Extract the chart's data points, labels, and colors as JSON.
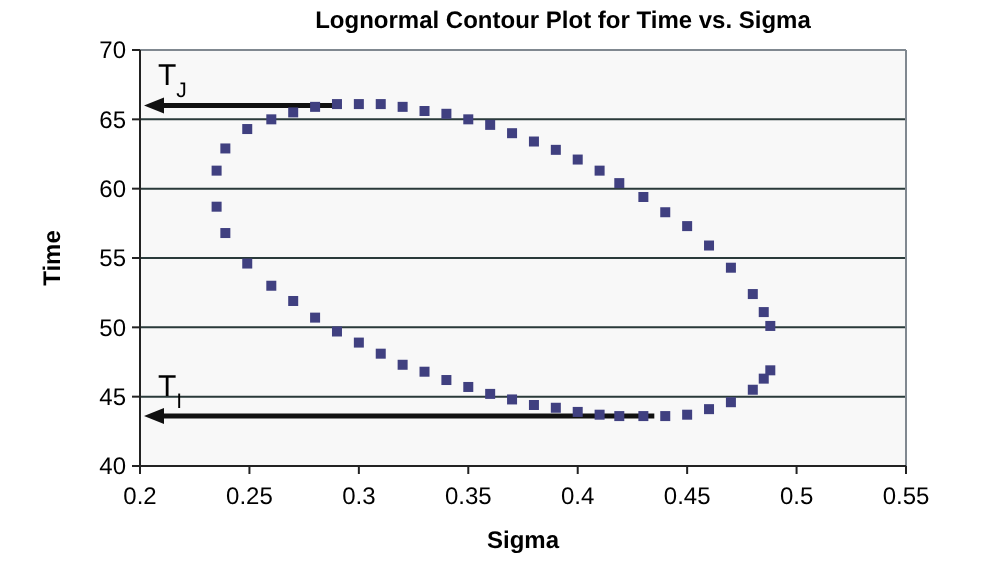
{
  "chart_data": {
    "type": "scatter",
    "title": "Lognormal Contour Plot for Time vs. Sigma",
    "xlabel": "Sigma",
    "ylabel": "Time",
    "x": [
      0.235,
      0.239,
      0.249,
      0.26,
      0.27,
      0.28,
      0.29,
      0.3,
      0.31,
      0.32,
      0.33,
      0.34,
      0.35,
      0.36,
      0.37,
      0.38,
      0.39,
      0.4,
      0.41,
      0.419,
      0.43,
      0.44,
      0.45,
      0.46,
      0.47,
      0.48,
      0.485,
      0.488,
      0.488,
      0.485,
      0.48,
      0.47,
      0.46,
      0.45,
      0.44,
      0.43,
      0.419,
      0.41,
      0.4,
      0.39,
      0.38,
      0.37,
      0.36,
      0.35,
      0.34,
      0.33,
      0.32,
      0.31,
      0.3,
      0.29,
      0.28,
      0.27,
      0.26,
      0.249,
      0.239,
      0.235
    ],
    "series": [
      {
        "color": "#404080",
        "values": [
          61.3,
          62.9,
          64.3,
          65.0,
          65.5,
          65.9,
          66.1,
          66.1,
          66.1,
          65.9,
          65.6,
          65.4,
          65.0,
          64.6,
          64.0,
          63.4,
          62.8,
          62.1,
          61.3,
          60.4,
          59.4,
          58.3,
          57.3,
          55.9,
          54.3,
          52.4,
          51.1,
          50.1,
          46.9,
          46.3,
          45.5,
          44.6,
          44.1,
          43.7,
          43.6,
          43.6,
          43.6,
          43.7,
          43.9,
          44.2,
          44.4,
          44.8,
          45.2,
          45.7,
          46.2,
          46.8,
          47.3,
          48.1,
          48.9,
          49.7,
          50.7,
          51.9,
          53.0,
          54.6,
          56.8,
          58.7
        ]
      }
    ],
    "marker": "square",
    "xlim": [
      0.2,
      0.55
    ],
    "xticks": [
      0.2,
      0.25,
      0.3,
      0.35,
      0.4,
      0.45,
      0.5,
      0.55
    ],
    "ylim": [
      40,
      70
    ],
    "yticks": [
      40,
      45,
      50,
      55,
      60,
      65,
      70
    ],
    "grid": "y",
    "annotations": [
      {
        "text": "T$_{J}$",
        "x": 0.29,
        "y": 66
      },
      {
        "text": "T$_{I}$",
        "x": 0.435,
        "y": 43.6
      }
    ]
  }
}
